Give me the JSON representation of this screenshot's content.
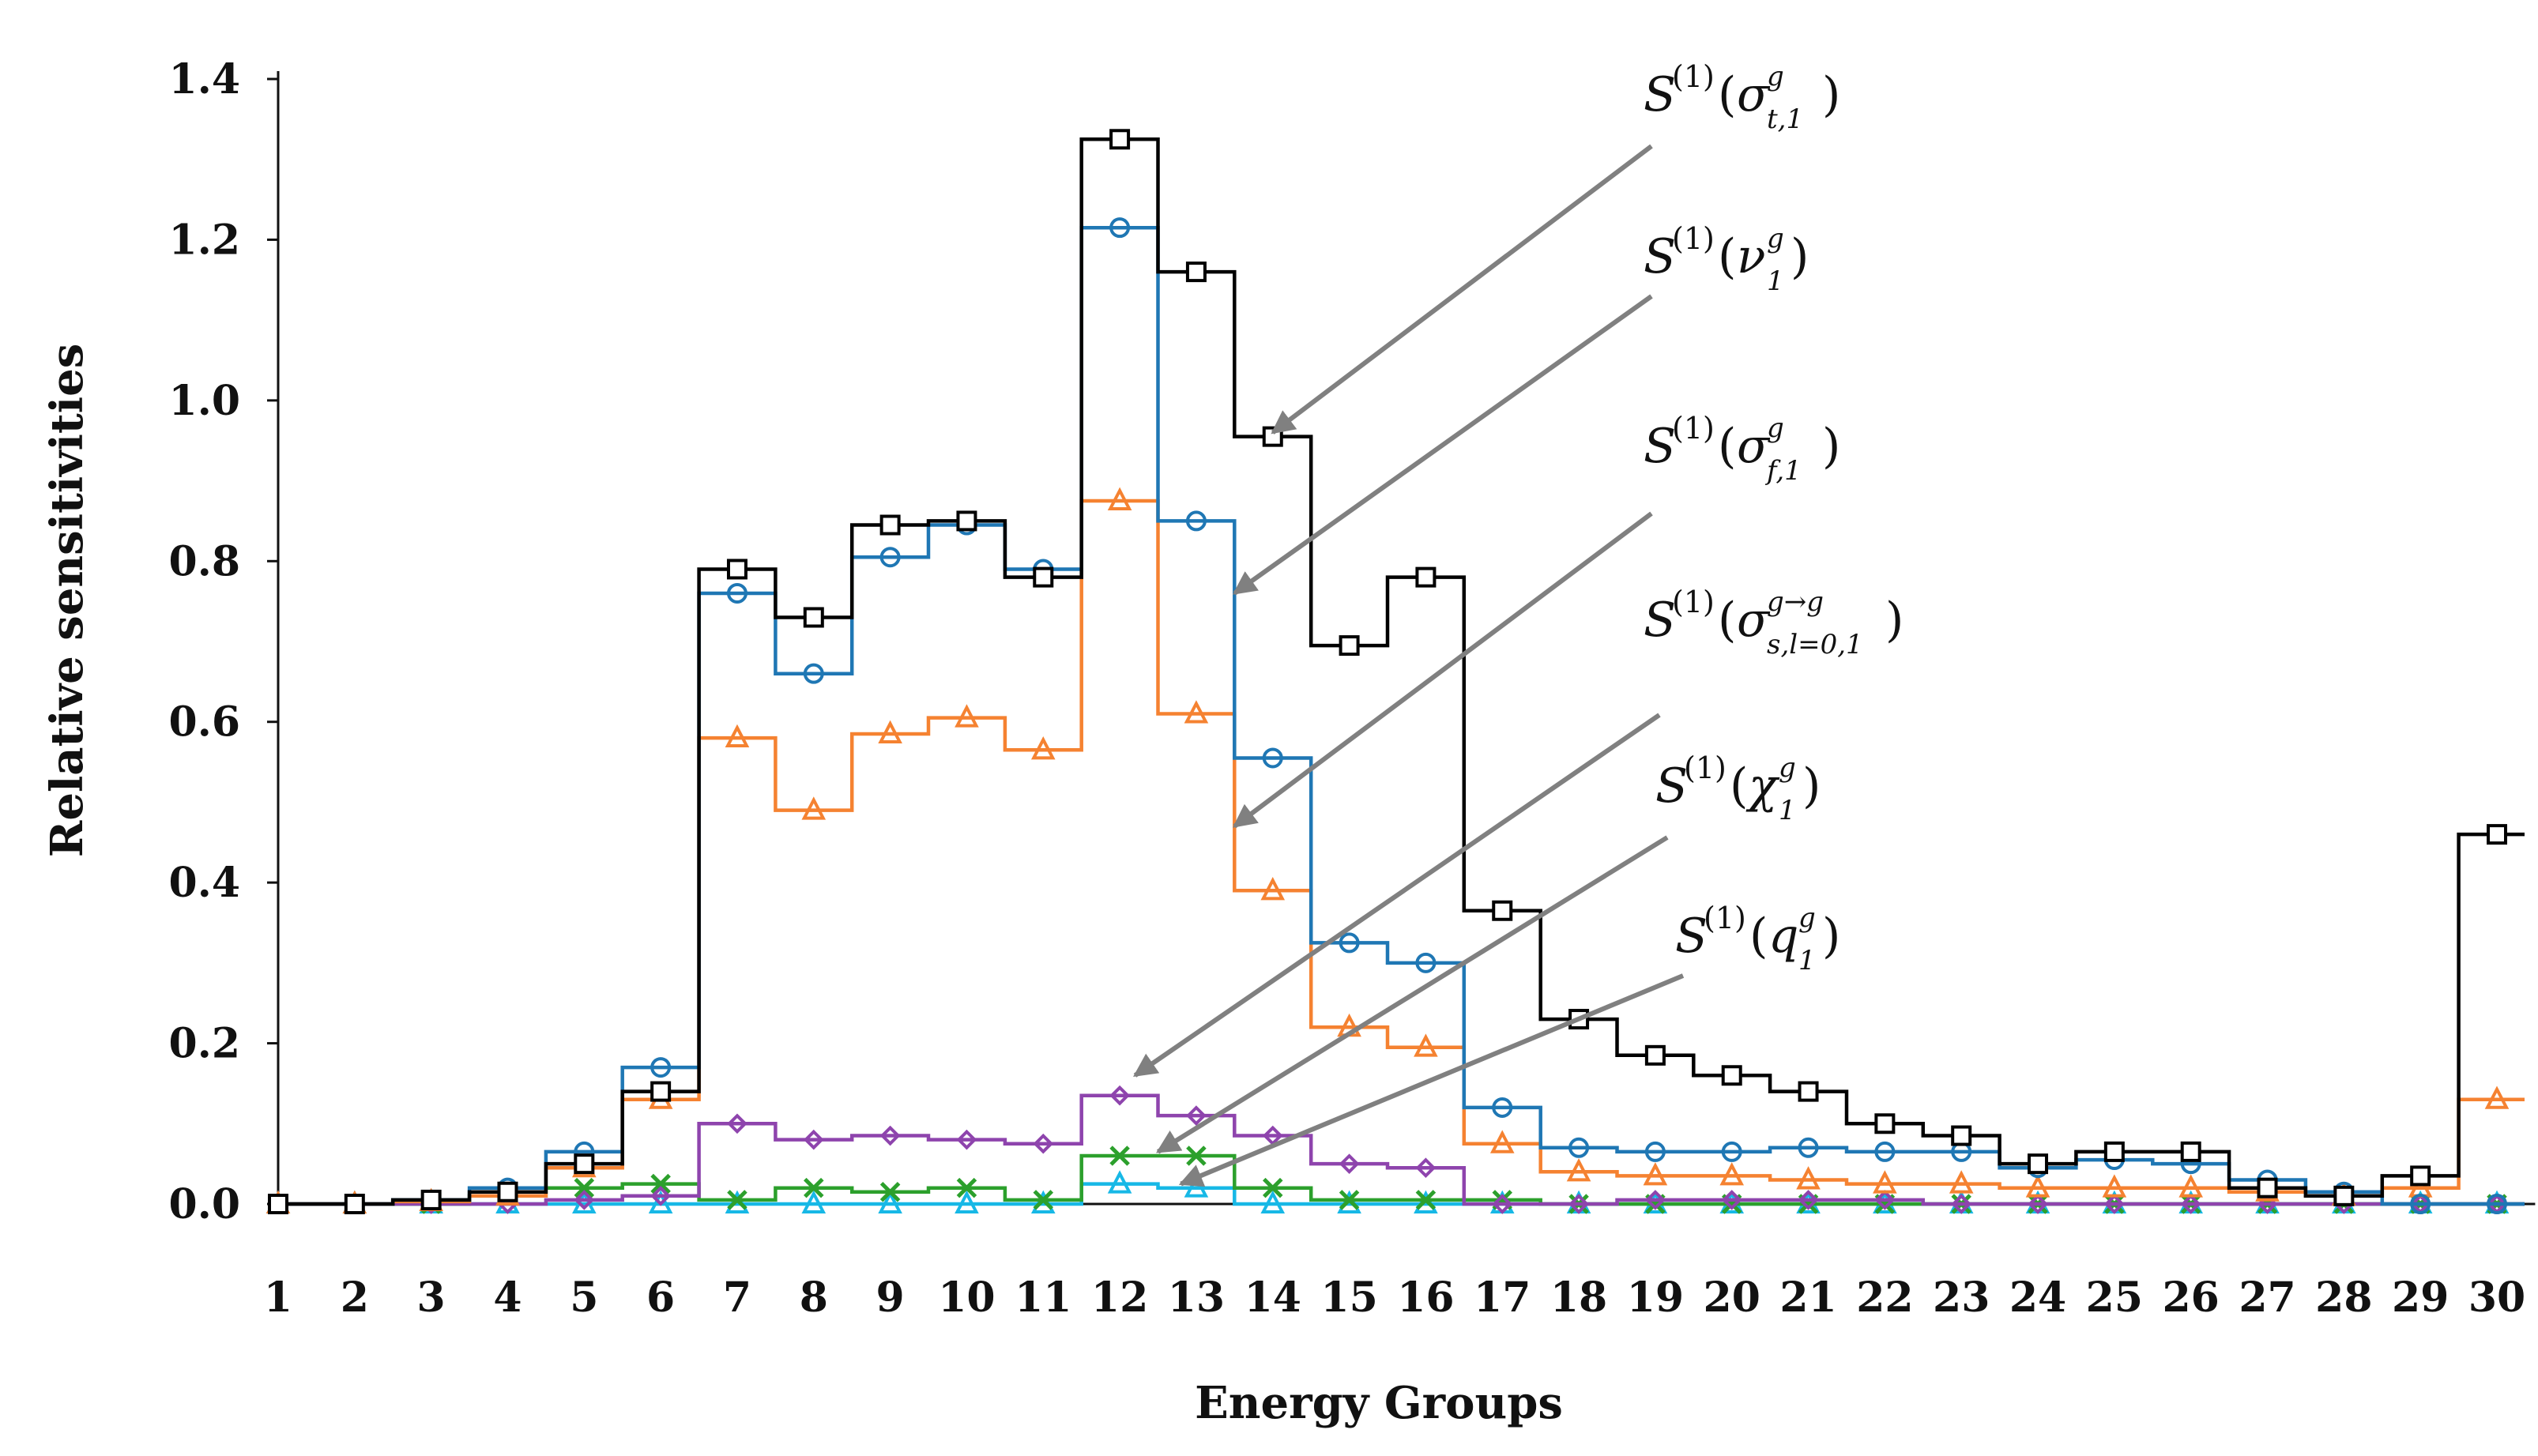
{
  "chart_data": {
    "type": "line",
    "step": true,
    "title": "",
    "xlabel": "Energy Groups",
    "ylabel": "Relative sensitivities",
    "xlim": [
      1,
      30
    ],
    "ylim": [
      0,
      1.4
    ],
    "x": [
      1,
      2,
      3,
      4,
      5,
      6,
      7,
      8,
      9,
      10,
      11,
      12,
      13,
      14,
      15,
      16,
      17,
      18,
      19,
      20,
      21,
      22,
      23,
      24,
      25,
      26,
      27,
      28,
      29,
      30
    ],
    "x_tick_labels": [
      "1",
      "2",
      "3",
      "4",
      "5",
      "6",
      "7",
      "8",
      "9",
      "10",
      "11",
      "12",
      "13",
      "14",
      "15",
      "16",
      "17",
      "18",
      "19",
      "20",
      "21",
      "22",
      "23",
      "24",
      "25",
      "26",
      "27",
      "28",
      "29",
      "30"
    ],
    "y_ticks": [
      0,
      0.2,
      0.4,
      0.6,
      0.8,
      1.0,
      1.2,
      1.4
    ],
    "y_tick_labels": [
      "0.0",
      "0.2",
      "0.4",
      "0.6",
      "0.8",
      "1.0",
      "1.2",
      "1.4"
    ],
    "series": [
      {
        "name": "S(1)(σ t,1 g)",
        "color": "#000000",
        "marker": "square",
        "values": [
          0.0,
          0.0,
          0.005,
          0.015,
          0.05,
          0.14,
          0.79,
          0.73,
          0.845,
          0.85,
          0.78,
          1.325,
          1.16,
          0.955,
          0.695,
          0.78,
          0.365,
          0.23,
          0.185,
          0.16,
          0.14,
          0.1,
          0.085,
          0.05,
          0.065,
          0.065,
          0.02,
          0.01,
          0.035,
          0.46
        ]
      },
      {
        "name": "S(1)(ν 1 g)",
        "color": "#1f77b4",
        "marker": "circle",
        "values": [
          0.0,
          0.0,
          0.005,
          0.02,
          0.065,
          0.17,
          0.76,
          0.66,
          0.805,
          0.845,
          0.79,
          1.215,
          0.85,
          0.555,
          0.325,
          0.3,
          0.12,
          0.07,
          0.065,
          0.065,
          0.07,
          0.065,
          0.065,
          0.045,
          0.055,
          0.05,
          0.03,
          0.015,
          0.0,
          0.0
        ]
      },
      {
        "name": "S(1)(σ f,1 g)",
        "color": "#f58231",
        "marker": "triangle",
        "values": [
          0.0,
          0.0,
          0.003,
          0.01,
          0.045,
          0.13,
          0.58,
          0.49,
          0.585,
          0.605,
          0.565,
          0.875,
          0.61,
          0.39,
          0.22,
          0.195,
          0.075,
          0.04,
          0.035,
          0.035,
          0.03,
          0.025,
          0.025,
          0.02,
          0.02,
          0.02,
          0.015,
          0.01,
          0.02,
          0.13
        ]
      },
      {
        "name": "S(1)(σ s,l=0,1 g→g)",
        "color": "#8e44ad",
        "marker": "diamond",
        "values": [
          0.0,
          0.0,
          0.0,
          0.0,
          0.005,
          0.01,
          0.1,
          0.08,
          0.085,
          0.08,
          0.075,
          0.135,
          0.11,
          0.085,
          0.05,
          0.045,
          0.0,
          0.0,
          0.005,
          0.005,
          0.005,
          0.005,
          0.0,
          0.0,
          0.0,
          0.0,
          0.0,
          0.0,
          0.0,
          0.0
        ]
      },
      {
        "name": "S(1)(χ 1 g)",
        "color": "#2ca02c",
        "marker": "x",
        "values": [
          0.0,
          0.0,
          0.0,
          0.01,
          0.02,
          0.025,
          0.005,
          0.02,
          0.015,
          0.02,
          0.005,
          0.06,
          0.06,
          0.02,
          0.005,
          0.005,
          0.005,
          0.0,
          0.0,
          0.0,
          0.0,
          0.0,
          0.0,
          0.0,
          0.0,
          0.0,
          0.0,
          0.0,
          0.0,
          0.0
        ]
      },
      {
        "name": "S(1)(q 1 g)",
        "color": "#17b8e6",
        "marker": "triangle",
        "values": [
          0.0,
          0.0,
          0.0,
          0.0,
          0.0,
          0.0,
          0.0,
          0.0,
          0.0,
          0.0,
          0.0,
          0.025,
          0.02,
          0.0,
          0.0,
          0.0,
          0.0,
          0.0,
          0.0,
          0.0,
          0.0,
          0.0,
          0.0,
          0.0,
          0.0,
          0.0,
          0.0,
          0.0,
          0.0,
          0.0
        ]
      }
    ],
    "annotations": [
      {
        "base": "S",
        "sup1": "(1)",
        "paren": "(",
        "sym": "σ",
        "sup": "g",
        "sub": "t,1",
        "close": ")",
        "points_to_series": 0,
        "at_x": 14,
        "at_y": 0.96
      },
      {
        "base": "S",
        "sup1": "(1)",
        "paren": "(",
        "sym": "ν",
        "sup": "g",
        "sub": "1",
        "close": ")",
        "points_to_series": 1,
        "at_x": 13.5,
        "at_y": 0.76
      },
      {
        "base": "S",
        "sup1": "(1)",
        "paren": "(",
        "sym": "σ",
        "sup": "g",
        "sub": "f,1",
        "close": ")",
        "points_to_series": 2,
        "at_x": 13.5,
        "at_y": 0.47
      },
      {
        "base": "S",
        "sup1": "(1)",
        "paren": "(",
        "sym": "σ",
        "sup": "g→g",
        "sub": "s,l=0,1",
        "close": ")",
        "points_to_series": 3,
        "at_x": 12.2,
        "at_y": 0.16
      },
      {
        "base": "S",
        "sup1": "(1)",
        "paren": "(",
        "sym": "χ",
        "sup": "g",
        "sub": "1",
        "close": ")",
        "points_to_series": 4,
        "at_x": 12.5,
        "at_y": 0.065
      },
      {
        "base": "S",
        "sup1": "(1)",
        "paren": "(",
        "sym": "q",
        "sup": "g",
        "sub": "1",
        "close": ")",
        "points_to_series": 5,
        "at_x": 12.8,
        "at_y": 0.025
      }
    ],
    "grid": false,
    "legend": "none"
  }
}
